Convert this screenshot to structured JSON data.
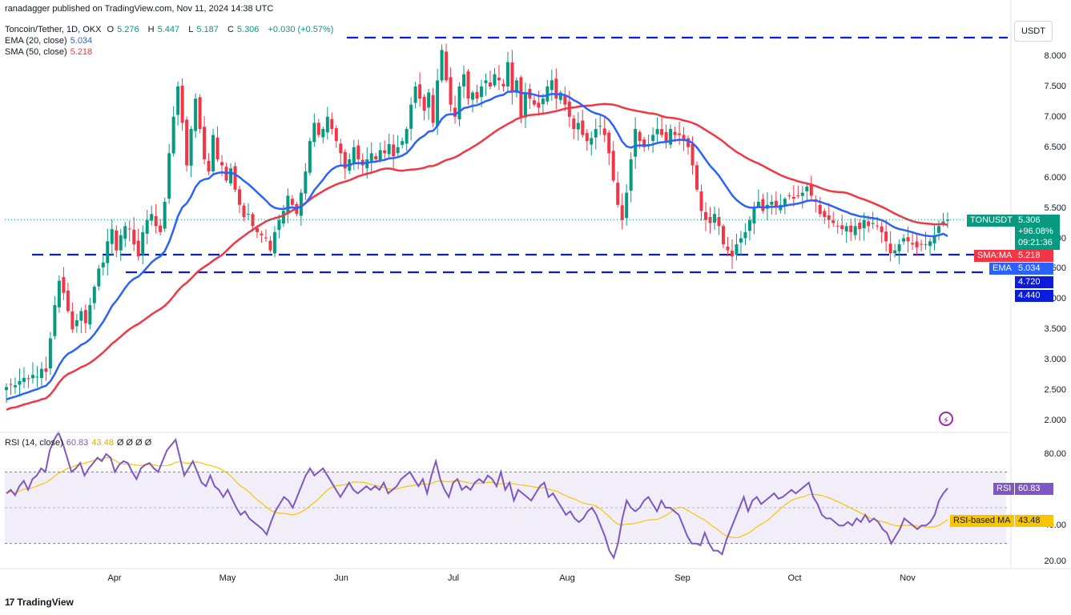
{
  "header": {
    "published": "ranadagger published on TradingView.com, Nov 11, 2024 14:38 UTC",
    "symbol": "Toncoin/Tether, 1D, OKX",
    "ohlc": {
      "o_label": "O",
      "o": "5.276",
      "h_label": "H",
      "h": "5.447",
      "l_label": "L",
      "l": "5.187",
      "c_label": "C",
      "c": "5.306",
      "change": "+0.030 (+0.57%)"
    },
    "ema_label": "EMA (20, close)",
    "ema_value": "5.034",
    "sma_label": "SMA (50, close)",
    "sma_value": "5.218",
    "rsi_label": "RSI (14, close)",
    "rsi_value": "60.83",
    "rsi_ma_value": "43.48",
    "rsi_extra": "Ø Ø Ø Ø"
  },
  "currency_button": "USDT",
  "price_axis": [
    "8.000",
    "7.500",
    "7.000",
    "6.500",
    "6.000",
    "5.500",
    "5.000",
    "4.500",
    "4.000",
    "3.500",
    "3.000",
    "2.500",
    "2.000"
  ],
  "rsi_axis": [
    "80.00",
    "40.00",
    "20.00"
  ],
  "time_axis": [
    "Apr",
    "May",
    "Jun",
    "Jul",
    "Aug",
    "Sep",
    "Oct",
    "Nov"
  ],
  "tags": {
    "ticker": "TONUSDT",
    "last_price": "5.306",
    "change_pct": "+96.08%",
    "countdown": "09:21:36",
    "sma_name": "SMA:MA",
    "sma_price": "5.218",
    "ema_name": "EMA",
    "ema_price": "5.034",
    "level_1": "4.720",
    "level_2": "4.440",
    "rsi_name": "RSI",
    "rsi_price": "60.83",
    "rsi_ma_name": "RSI-based MA",
    "rsi_ma_price": "43.48"
  },
  "brand": "TradingView",
  "colors": {
    "up": "#089981",
    "down": "#f23645",
    "ema": "#2962ff",
    "sma": "#f23645",
    "rsi": "#7e57c2",
    "rsi_ma": "#f7c600",
    "level": "#0c1cdb",
    "band": "#7e57c2"
  },
  "chart_data": {
    "type": "candlestick",
    "x_range": [
      "2024-03-02",
      "2024-11-11"
    ],
    "y_range": [
      2.0,
      8.3
    ],
    "horizontal_levels": [
      8.3,
      4.72,
      4.44
    ],
    "candles": {
      "start_date": "2024-03-02",
      "close": [
        2.55,
        2.6,
        2.58,
        2.65,
        2.7,
        2.68,
        2.75,
        2.72,
        2.85,
        2.8,
        3.35,
        3.9,
        4.3,
        4.1,
        3.8,
        3.5,
        3.65,
        3.8,
        3.6,
        3.9,
        4.2,
        4.5,
        4.6,
        4.95,
        5.15,
        4.8,
        5.05,
        5.2,
        5.15,
        4.9,
        4.7,
        5.1,
        5.3,
        5.4,
        5.2,
        5.1,
        5.6,
        6.4,
        7.0,
        7.5,
        6.9,
        6.2,
        6.8,
        7.3,
        6.8,
        6.3,
        6.1,
        6.7,
        6.3,
        6.2,
        5.95,
        6.15,
        5.8,
        5.55,
        5.35,
        5.4,
        5.2,
        5.1,
        5.05,
        5.0,
        4.8,
        5.1,
        5.3,
        5.45,
        5.7,
        5.55,
        5.4,
        5.75,
        6.1,
        6.6,
        6.9,
        6.7,
        6.8,
        7.0,
        6.8,
        6.6,
        6.4,
        6.15,
        6.3,
        6.5,
        6.3,
        6.2,
        6.3,
        6.4,
        6.3,
        6.45,
        6.4,
        6.55,
        6.35,
        6.5,
        6.6,
        6.8,
        7.2,
        7.5,
        7.3,
        7.1,
        7.4,
        6.9,
        7.6,
        8.1,
        7.6,
        7.2,
        7.0,
        7.5,
        7.7,
        7.3,
        7.4,
        7.3,
        7.5,
        7.6,
        7.5,
        7.7,
        7.6,
        7.5,
        7.9,
        7.4,
        7.6,
        7.0,
        7.4,
        7.3,
        7.2,
        7.15,
        7.3,
        7.5,
        7.6,
        7.3,
        7.4,
        7.2,
        7.0,
        6.8,
        6.9,
        6.7,
        6.6,
        6.65,
        6.8,
        6.85,
        6.7,
        6.4,
        5.95,
        5.55,
        5.3,
        5.75,
        6.3,
        6.8,
        6.6,
        6.5,
        6.55,
        6.7,
        6.8,
        6.7,
        6.6,
        6.8,
        6.7,
        6.7,
        6.6,
        6.5,
        6.2,
        5.8,
        5.45,
        5.3,
        5.25,
        5.4,
        5.2,
        4.9,
        4.8,
        4.7,
        4.9,
        5.0,
        5.1,
        5.3,
        5.5,
        5.6,
        5.45,
        5.55,
        5.6,
        5.5,
        5.55,
        5.65,
        5.7,
        5.65,
        5.7,
        5.75,
        5.85,
        5.7,
        5.6,
        5.4,
        5.35,
        5.3,
        5.25,
        5.2,
        5.15,
        5.2,
        5.1,
        5.2,
        5.15,
        5.3,
        5.2,
        5.25,
        5.2,
        5.1,
        4.95,
        4.75,
        4.8,
        4.9,
        5.0,
        4.95,
        4.9,
        4.85,
        4.9,
        4.9,
        4.95,
        5.05,
        5.2,
        5.276,
        5.306
      ]
    },
    "series": [
      {
        "name": "EMA (20, close)",
        "last": 5.034
      },
      {
        "name": "SMA (50, close)",
        "last": 5.218
      }
    ],
    "rsi": {
      "y_range": [
        15,
        100
      ],
      "overbought": 70,
      "oversold": 30,
      "mid": 50,
      "values": [
        58,
        60,
        57,
        62,
        65,
        60,
        66,
        68,
        72,
        70,
        82,
        88,
        92,
        86,
        78,
        70,
        72,
        75,
        68,
        72,
        75,
        78,
        76,
        80,
        78,
        70,
        74,
        76,
        75,
        70,
        66,
        72,
        74,
        75,
        72,
        70,
        76,
        82,
        85,
        88,
        78,
        68,
        72,
        76,
        70,
        64,
        62,
        68,
        62,
        60,
        56,
        60,
        55,
        50,
        46,
        48,
        44,
        42,
        40,
        38,
        35,
        42,
        48,
        52,
        56,
        54,
        50,
        56,
        62,
        68,
        72,
        68,
        70,
        72,
        68,
        64,
        60,
        56,
        60,
        64,
        60,
        58,
        60,
        62,
        60,
        62,
        60,
        64,
        58,
        60,
        62,
        66,
        68,
        70,
        66,
        62,
        66,
        58,
        68,
        76,
        66,
        60,
        56,
        64,
        66,
        60,
        62,
        60,
        64,
        66,
        64,
        68,
        66,
        62,
        70,
        60,
        64,
        54,
        60,
        58,
        56,
        54,
        58,
        62,
        64,
        56,
        58,
        54,
        50,
        46,
        48,
        44,
        42,
        44,
        48,
        50,
        46,
        40,
        34,
        26,
        22,
        30,
        44,
        54,
        50,
        48,
        50,
        54,
        56,
        52,
        48,
        54,
        50,
        50,
        48,
        46,
        40,
        34,
        30,
        30,
        29,
        36,
        30,
        26,
        26,
        24,
        32,
        38,
        44,
        50,
        56,
        48,
        54,
        56,
        52,
        54,
        56,
        58,
        55,
        56,
        58,
        60,
        58,
        60,
        62,
        64,
        56,
        52,
        46,
        44,
        44,
        42,
        40,
        40,
        42,
        40,
        44,
        42,
        46,
        42,
        44,
        42,
        38,
        36,
        30,
        34,
        38,
        44,
        42,
        40,
        38,
        40,
        40,
        42,
        46,
        54,
        58,
        60.83
      ],
      "ma_last": 43.48
    }
  }
}
